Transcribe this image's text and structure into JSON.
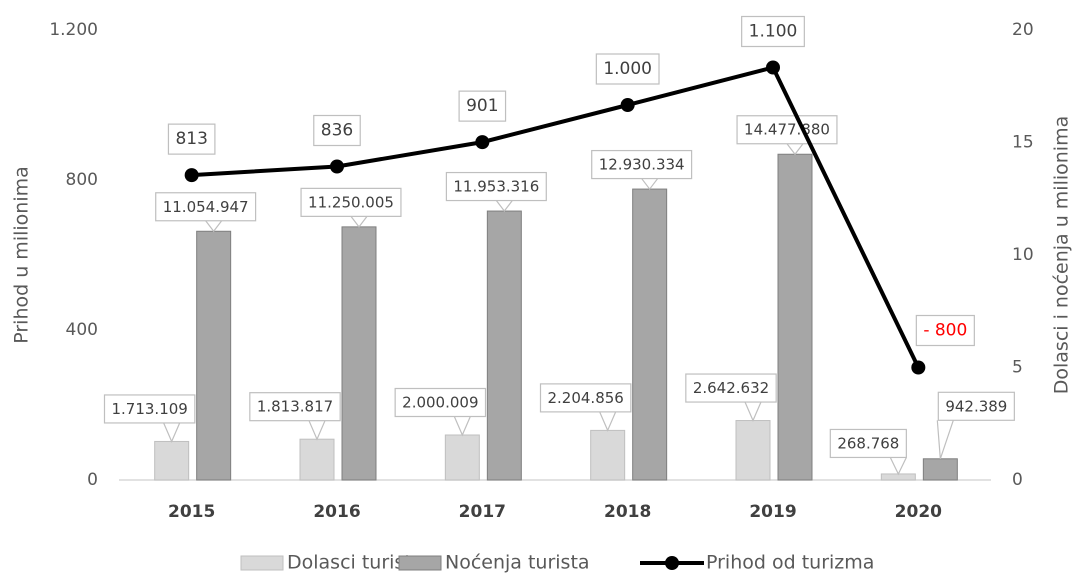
{
  "chart_data": {
    "type": "bar",
    "categories": [
      "2015",
      "2016",
      "2017",
      "2018",
      "2019",
      "2020"
    ],
    "ylabel": "Prihod u milionima",
    "y2label": "Dolasci i noćenja u milionima",
    "ylim": [
      0,
      1200
    ],
    "yticks": [
      0,
      400,
      800,
      {
        "value": 1200,
        "label": "1.200"
      }
    ],
    "y2lim": [
      0,
      20
    ],
    "y2ticks": [
      0,
      5,
      10,
      15,
      20
    ],
    "series": [
      {
        "name": "Dolasci turista",
        "type": "bar",
        "axis": "y2",
        "color": "#d9d9d9",
        "values": [
          1.713109,
          1.813817,
          2.000009,
          2.204856,
          2.642632,
          0.268768
        ],
        "value_labels": [
          "1.713.109",
          "1.813.817",
          "2.000.009",
          "2.204.856",
          "2.642.632",
          "268.768"
        ]
      },
      {
        "name": "Noćenja turista",
        "type": "bar",
        "axis": "y2",
        "color": "#a6a6a6",
        "values": [
          11.054947,
          11.250005,
          11.953316,
          12.930334,
          14.47788,
          0.942389
        ],
        "value_labels": [
          "11.054.947",
          "11.250.005",
          "11.953.316",
          "12.930.334",
          "14.477.880",
          "942.389"
        ]
      },
      {
        "name": "Prihod od turizma",
        "type": "line",
        "color": "#000000",
        "values": [
          813,
          836,
          901,
          1000,
          1100,
          300
        ],
        "value_labels": [
          "813",
          "836",
          "901",
          "1.000",
          "1.100",
          null
        ]
      }
    ],
    "annotations": [
      {
        "text": "- 800",
        "color": "#ff0000"
      }
    ],
    "grid": false
  }
}
